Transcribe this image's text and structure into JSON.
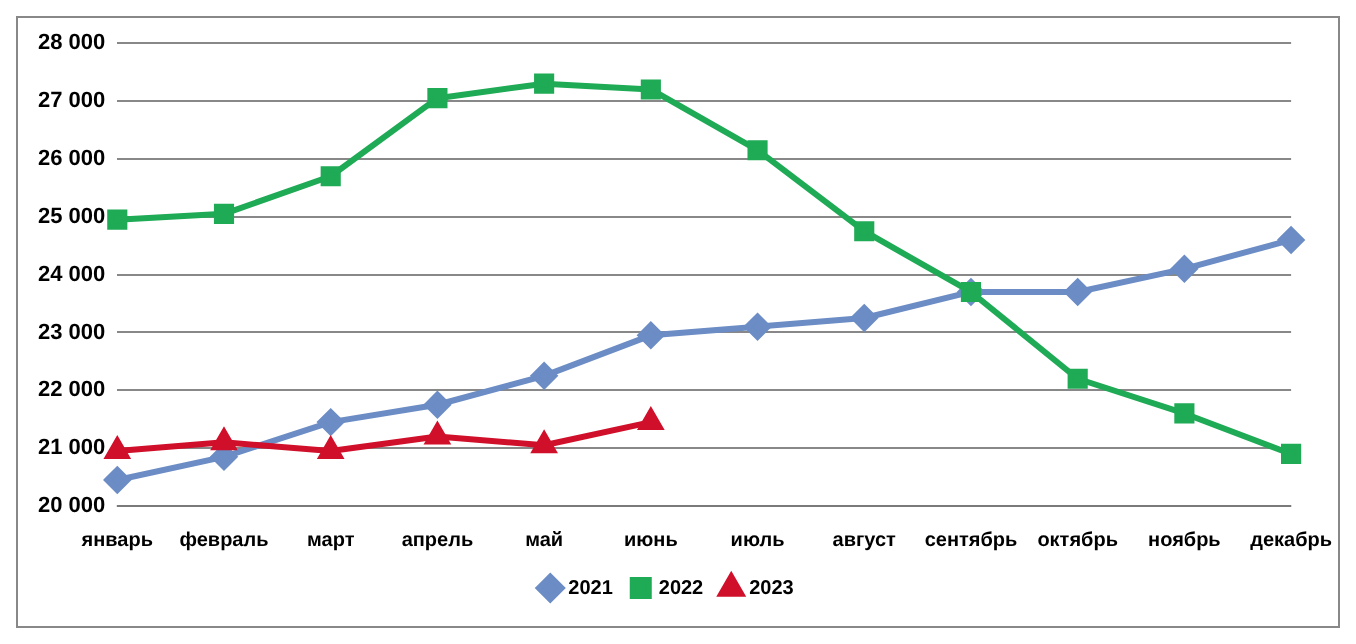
{
  "chart_data": {
    "type": "line",
    "categories": [
      "январь",
      "февраль",
      "март",
      "апрель",
      "май",
      "июнь",
      "июль",
      "август",
      "сентябрь",
      "октябрь",
      "ноябрь",
      "декабрь"
    ],
    "series": [
      {
        "name": "2021",
        "color": "#6b8cc4",
        "marker": "diamond",
        "values": [
          20450,
          20850,
          21450,
          21750,
          22250,
          22950,
          23100,
          23250,
          23700,
          23700,
          24100,
          24600
        ]
      },
      {
        "name": "2022",
        "color": "#1faa55",
        "marker": "square",
        "values": [
          24950,
          25050,
          25700,
          27050,
          27300,
          27200,
          26150,
          24750,
          23700,
          22200,
          21600,
          20900
        ]
      },
      {
        "name": "2023",
        "color": "#d0102a",
        "marker": "triangle",
        "values": [
          20950,
          21100,
          20950,
          21200,
          21050,
          21450,
          null,
          null,
          null,
          null,
          null,
          null
        ]
      }
    ],
    "ylim": [
      20000,
      28000
    ],
    "yticks": [
      {
        "value": 20000,
        "label": "20 000"
      },
      {
        "value": 21000,
        "label": "21 000"
      },
      {
        "value": 22000,
        "label": "22 000"
      },
      {
        "value": 23000,
        "label": "23 000"
      },
      {
        "value": 24000,
        "label": "24 000"
      },
      {
        "value": 25000,
        "label": "25 000"
      },
      {
        "value": 26000,
        "label": "26 000"
      },
      {
        "value": 27000,
        "label": "27 000"
      },
      {
        "value": 28000,
        "label": "28 000"
      }
    ],
    "grid": "y",
    "legend": "bottom"
  }
}
